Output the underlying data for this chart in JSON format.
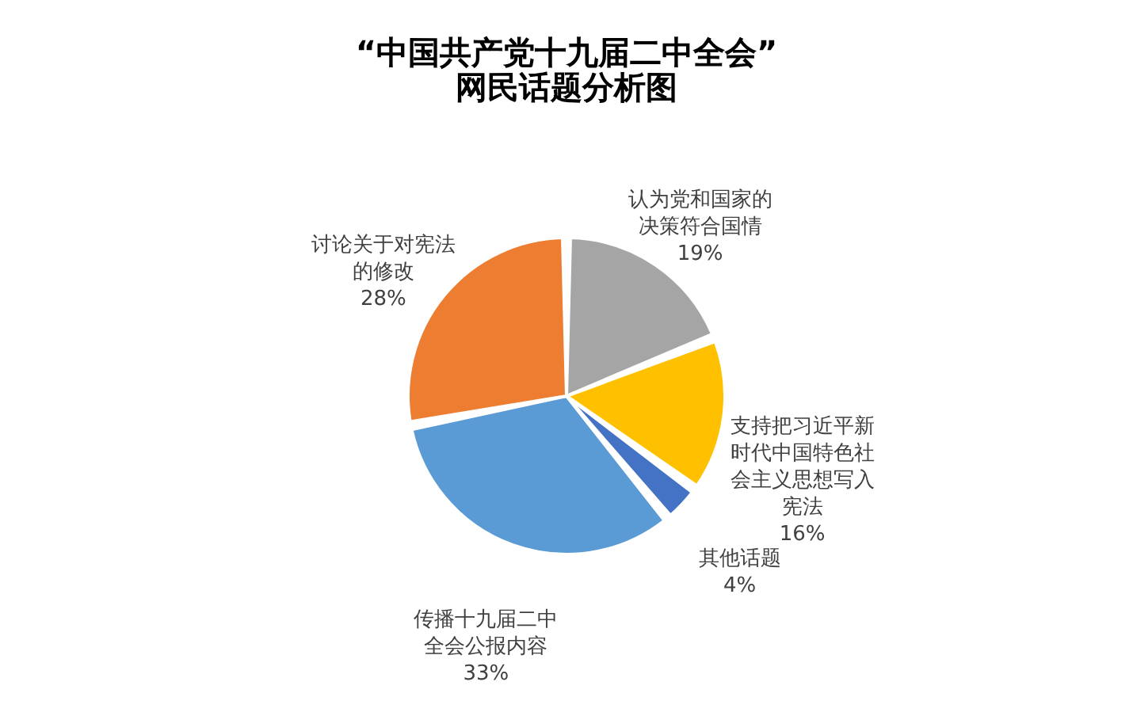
{
  "chart_data": {
    "type": "pie",
    "title": "“中国共产党十九届二中全会”\n网民话题分析图",
    "categories": [
      "认为党和国家的决策符合国情",
      "支持把习近平新时代中国特色社会主义思想写入宪法",
      "其他话题",
      "传播十九届二中全会公报内容",
      "讨论关于对宪法的修改"
    ],
    "values": [
      19,
      16,
      4,
      33,
      28
    ],
    "colors": [
      "#a5a5a5",
      "#ffc000",
      "#4472c4",
      "#5b9bd5",
      "#ed7d31"
    ],
    "value_labels": [
      "19%",
      "16%",
      "4%",
      "33%",
      "28%"
    ],
    "legend": false
  }
}
